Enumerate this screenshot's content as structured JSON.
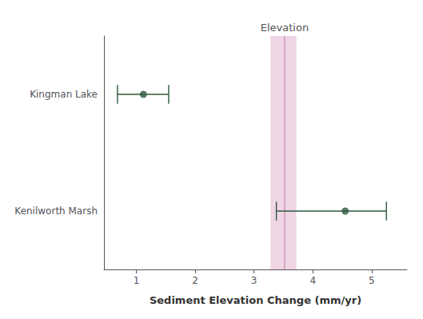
{
  "chart_data": {
    "type": "scatter",
    "xlabel": "Sediment Elevation Change (mm/yr)",
    "categories": [
      "Kingman Lake",
      "Kenilworth Marsh"
    ],
    "values": [
      1.12,
      4.55
    ],
    "ci_low": [
      0.68,
      3.38
    ],
    "ci_high": [
      1.55,
      5.25
    ],
    "color": "#2d5a3d",
    "xlim": [
      0.45,
      5.6
    ],
    "xticks": [
      1,
      2,
      3,
      4,
      5
    ],
    "grid": false,
    "reference_line": {
      "value": 3.52,
      "label": "Elevation",
      "color": "#c888aa"
    },
    "reference_band": {
      "low": 3.28,
      "high": 3.72,
      "color": "#f0d5e5"
    }
  }
}
